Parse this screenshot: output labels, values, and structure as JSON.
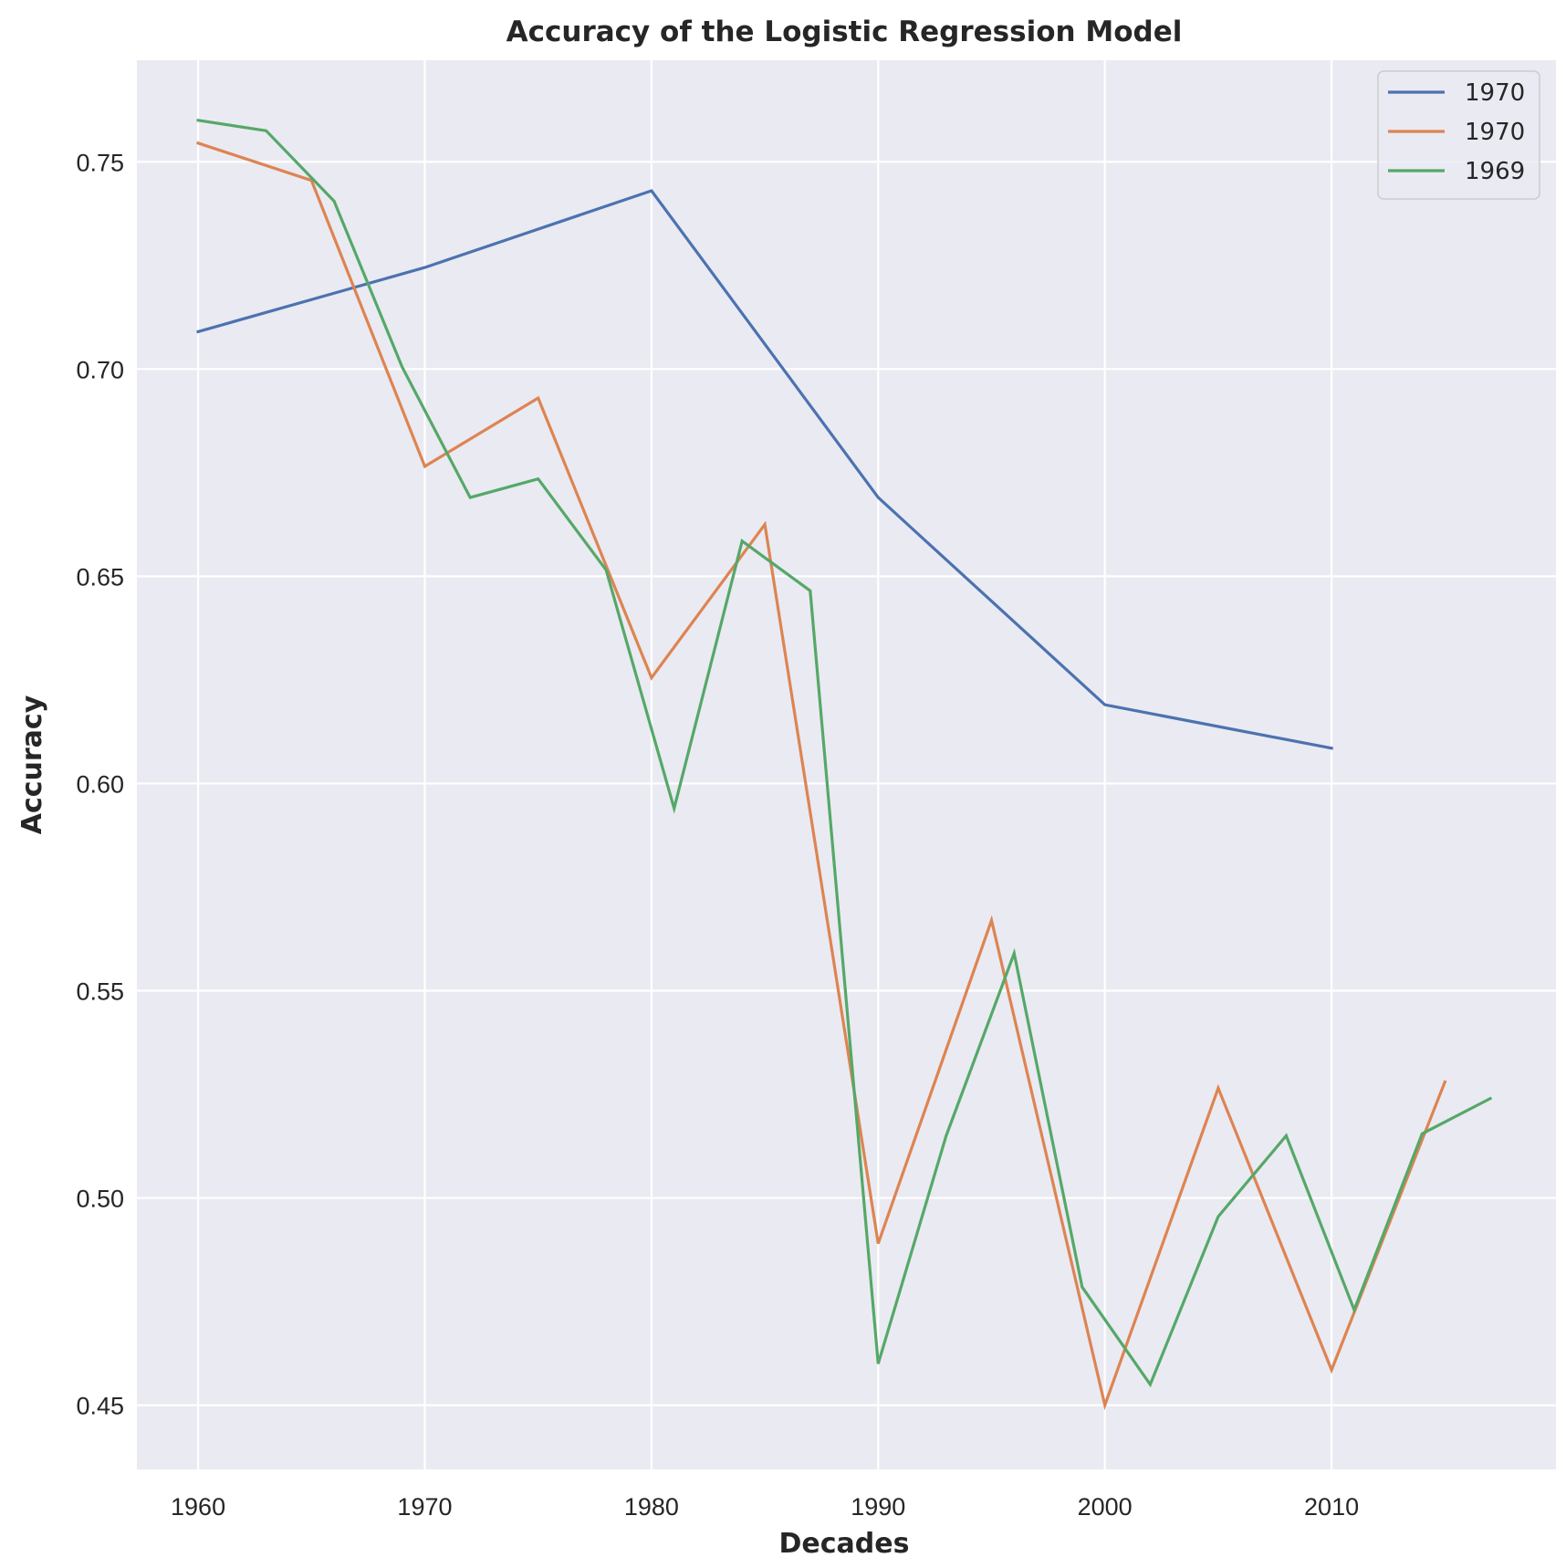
{
  "chart_data": {
    "type": "line",
    "title": "Accuracy of the Logistic Regression Model",
    "xlabel": "Decades",
    "ylabel": "Accuracy",
    "xlim": [
      1957.3,
      2019.9
    ],
    "ylim": [
      0.4345,
      0.7745
    ],
    "x_ticks": [
      1960,
      1970,
      1980,
      1990,
      2000,
      2010
    ],
    "y_ticks": [
      0.45,
      0.5,
      0.55,
      0.6,
      0.65,
      0.7,
      0.75
    ],
    "y_tick_labels": [
      "0.45",
      "0.50",
      "0.55",
      "0.60",
      "0.65",
      "0.70",
      "0.75"
    ],
    "grid": true,
    "legend_position": "top-right",
    "background": "#eaeaf2",
    "series": [
      {
        "name": "1970",
        "color": "#4c72b0",
        "x": [
          1960,
          1970,
          1980,
          1990,
          2000,
          2010
        ],
        "y": [
          0.709,
          0.7245,
          0.743,
          0.669,
          0.619,
          0.6085
        ]
      },
      {
        "name": "1970",
        "color": "#dd8452",
        "x": [
          1960,
          1965,
          1970,
          1975,
          1980,
          1985,
          1990,
          1995,
          2000,
          2005,
          2010,
          2015
        ],
        "y": [
          0.7545,
          0.7455,
          0.6765,
          0.693,
          0.6255,
          0.6625,
          0.489,
          0.567,
          0.45,
          0.5265,
          0.4585,
          0.528
        ]
      },
      {
        "name": "1969",
        "color": "#55a868",
        "x": [
          1960,
          1963,
          1966,
          1969,
          1972,
          1975,
          1978,
          1981,
          1984,
          1987,
          1990,
          1993,
          1996,
          1999,
          2002,
          2005,
          2008,
          2011,
          2014,
          2017
        ],
        "y": [
          0.76,
          0.7575,
          0.7405,
          0.7005,
          0.669,
          0.6735,
          0.6515,
          0.594,
          0.6585,
          0.6465,
          0.46,
          0.515,
          0.559,
          0.4785,
          0.455,
          0.4955,
          0.515,
          0.473,
          0.5155,
          0.524
        ]
      }
    ]
  }
}
